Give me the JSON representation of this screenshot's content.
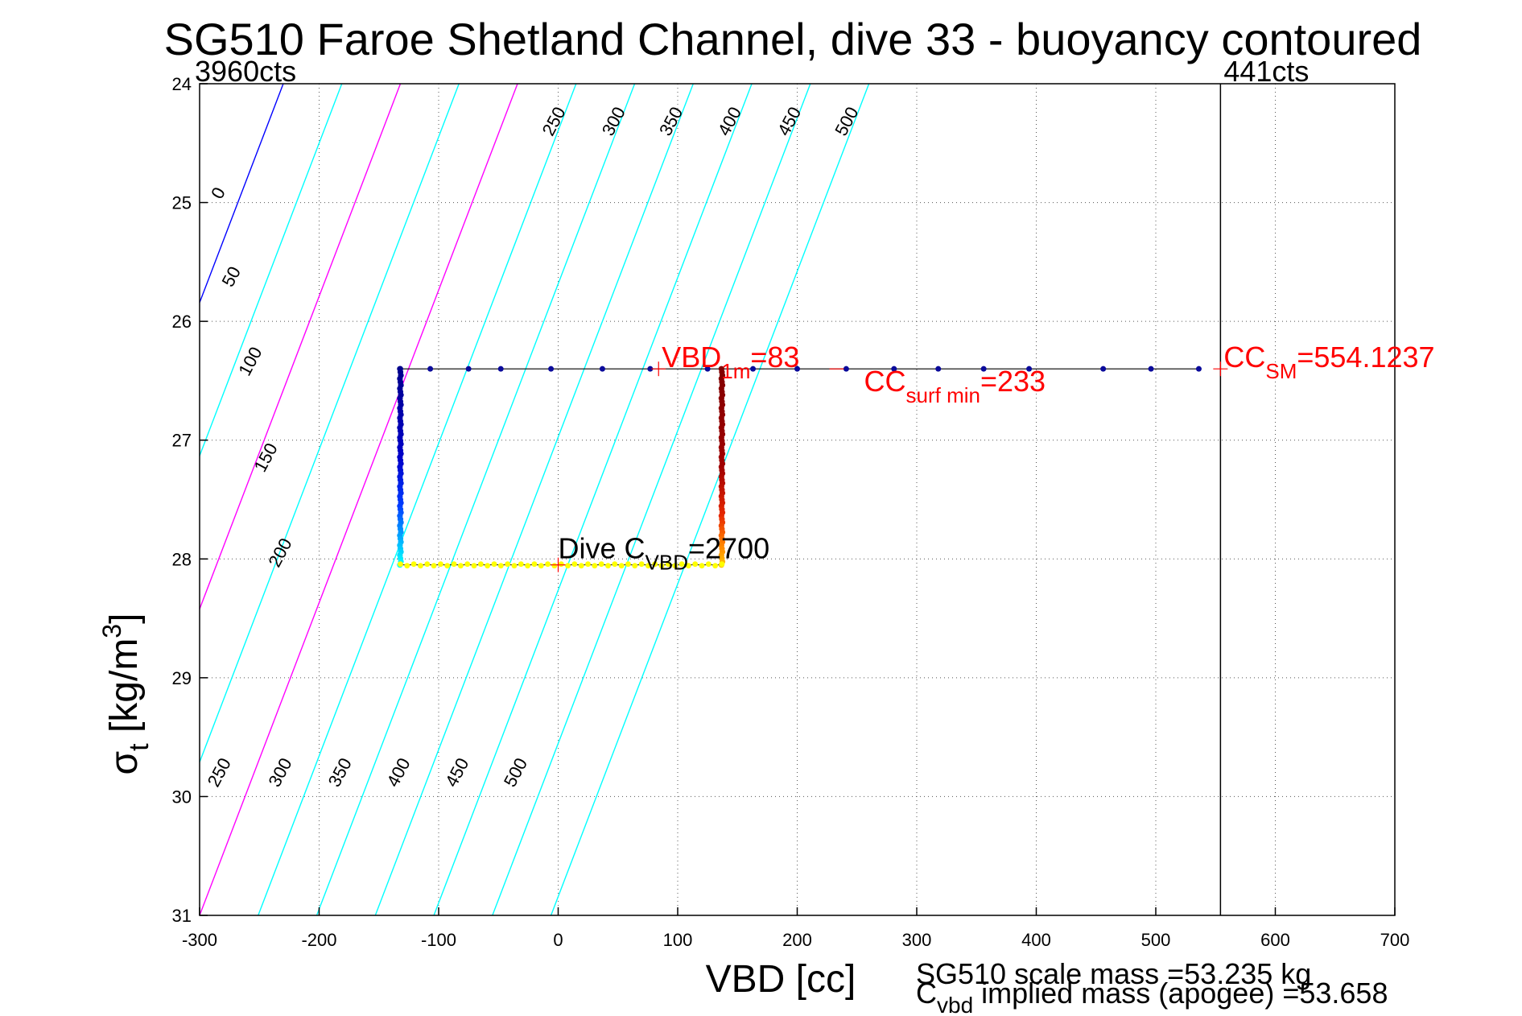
{
  "chart_data": {
    "type": "scatter",
    "title": "SG510 Faroe Shetland Channel, dive 33 - buoyancy contoured",
    "xlabel": "VBD [cc]",
    "ylabel_main": "σ",
    "ylabel_sub": "t",
    "ylabel_rest": " [kg/m",
    "ylabel_sup": "3",
    "ylabel_close": "]",
    "xlim": [
      -300,
      700
    ],
    "ylim": [
      24,
      31
    ],
    "y_reversed": true,
    "grid": "dotted",
    "xticks": [
      -300,
      -200,
      -100,
      0,
      100,
      200,
      300,
      400,
      500,
      600,
      700
    ],
    "yticks": [
      24,
      25,
      26,
      27,
      28,
      29,
      30,
      31
    ],
    "count_labels": [
      {
        "text": "3960cts",
        "x": -300
      },
      {
        "text": "441cts",
        "x": 554.1237
      }
    ],
    "cc_sm_line_x": 554.1237,
    "contour_slope_cc_per_sigma": 38,
    "contours": [
      {
        "level": 0,
        "color": "#0000ff",
        "x_at_24": -230
      },
      {
        "level": 50,
        "color": "#00ffff",
        "x_at_24": -181
      },
      {
        "level": 100,
        "color": "#ff00ff",
        "x_at_24": -132
      },
      {
        "level": 150,
        "color": "#00ffff",
        "x_at_24": -83
      },
      {
        "level": 200,
        "color": "#ff00ff",
        "x_at_24": -34
      },
      {
        "level": 250,
        "color": "#00ffff",
        "x_at_24": 15
      },
      {
        "level": 300,
        "color": "#00ffff",
        "x_at_24": 64
      },
      {
        "level": 350,
        "color": "#00ffff",
        "x_at_24": 113
      },
      {
        "level": 400,
        "color": "#00ffff",
        "x_at_24": 162
      },
      {
        "level": 450,
        "color": "#00ffff",
        "x_at_24": 211
      },
      {
        "level": 500,
        "color": "#00ffff",
        "x_at_24": 260
      }
    ],
    "contour_labels_top": [
      {
        "text": "250",
        "x": -5,
        "y": 24.45
      },
      {
        "text": "300",
        "x": 45,
        "y": 24.45
      },
      {
        "text": "350",
        "x": 93,
        "y": 24.45
      },
      {
        "text": "400",
        "x": 142,
        "y": 24.45
      },
      {
        "text": "450",
        "x": 192,
        "y": 24.45
      },
      {
        "text": "500",
        "x": 240,
        "y": 24.45
      }
    ],
    "contour_labels_left": [
      {
        "text": "0",
        "x": -282,
        "y": 24.98
      },
      {
        "text": "50",
        "x": -273,
        "y": 25.72
      },
      {
        "text": "100",
        "x": -259,
        "y": 26.47
      },
      {
        "text": "150",
        "x": -246,
        "y": 27.28
      },
      {
        "text": "200",
        "x": -234,
        "y": 28.08
      }
    ],
    "contour_labels_bottom": [
      {
        "text": "250",
        "x": -285,
        "y": 29.93
      },
      {
        "text": "300",
        "x": -234,
        "y": 29.93
      },
      {
        "text": "350",
        "x": -184,
        "y": 29.93
      },
      {
        "text": "400",
        "x": -135,
        "y": 29.93
      },
      {
        "text": "450",
        "x": -86,
        "y": 29.93
      },
      {
        "text": "500",
        "x": -37,
        "y": 29.93
      }
    ],
    "series": [
      {
        "label_kind": "surface",
        "x": [
          -132,
          -107,
          -75,
          -48,
          -6,
          37,
          77,
          125,
          163,
          200,
          241,
          281,
          318,
          356,
          394,
          456,
          496,
          536
        ],
        "y": [
          26.4,
          26.4,
          26.4,
          26.4,
          26.4,
          26.4,
          26.4,
          26.4,
          26.4,
          26.4,
          26.4,
          26.4,
          26.4,
          26.4,
          26.4,
          26.4,
          26.4,
          26.4
        ]
      },
      {
        "label_kind": "dive_branch_x",
        "x": -132
      },
      {
        "label_kind": "climb_branch_x",
        "x": 137
      },
      {
        "label_kind": "bottom",
        "x_from": -132,
        "x_to": 137,
        "y": 28.05
      }
    ],
    "annotations": [
      {
        "text": "VBD",
        "sub": "1m",
        "rest": "=83",
        "x": 84,
        "y": 26.4,
        "color": "#ff0000"
      },
      {
        "text": "CC",
        "sub": "surf min",
        "rest": "=233",
        "x": 233,
        "y": 26.4,
        "color": "#ff0000"
      },
      {
        "text": "CC",
        "sub": "SM",
        "rest": "=554.1237",
        "x": 554.1237,
        "y": 26.4,
        "color": "#ff0000"
      },
      {
        "text": "Dive C",
        "sub": "VBD",
        "rest": "=2700",
        "x": 0,
        "y": 28.05,
        "color": "#000000"
      }
    ]
  },
  "footer": {
    "scale_mass": "SG510 scale mass =53.235 kg",
    "implied_c": "C",
    "implied_sub": "vbd",
    "implied_rest": " implied mass (apogee) =53.658"
  }
}
